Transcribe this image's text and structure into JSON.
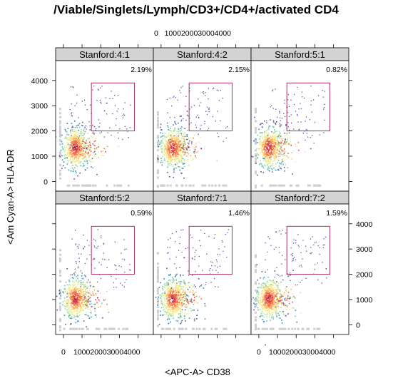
{
  "chart_data": {
    "type": "scatter",
    "title": "/Viable/Singlets/Lymph/CD3+/CD4+/activated CD4",
    "xlabel": "<APC-A> CD38",
    "ylabel": "<Am Cyan-A> HLA-DR",
    "xlim": [
      -300,
      4700
    ],
    "ylim": [
      -300,
      4700
    ],
    "x_ticks": [
      0,
      1000,
      2000,
      3000,
      4000
    ],
    "y_ticks": [
      0,
      1000,
      2000,
      3000,
      4000
    ],
    "x_tick_text_top": "0   1000200030004000",
    "x_tick_text_bottom": "1000200030004000",
    "gate": {
      "x_min": 1500,
      "x_max": 3800,
      "y_min": 2000,
      "y_max": 3900
    },
    "panels": [
      {
        "label": "Stanford:4:1",
        "percent": "2.19%"
      },
      {
        "label": "Stanford:4:2",
        "percent": "2.15%"
      },
      {
        "label": "Stanford:5:1",
        "percent": "0.82%"
      },
      {
        "label": "Stanford:5:2",
        "percent": "0.59%"
      },
      {
        "label": "Stanford:7:1",
        "percent": "1.46%"
      },
      {
        "label": "Stanford:7:2",
        "percent": "1.59%"
      }
    ],
    "density_center": {
      "x": 600,
      "y": 1350
    },
    "colors": {
      "gate": "#b03060",
      "strip": "#d3d3d3",
      "scale": [
        "#5e4fa2",
        "#3288bd",
        "#66c2a5",
        "#abdda4",
        "#e6f598",
        "#fee08b",
        "#fdae61",
        "#f46d43",
        "#d53e4f",
        "#9e0142"
      ]
    }
  }
}
